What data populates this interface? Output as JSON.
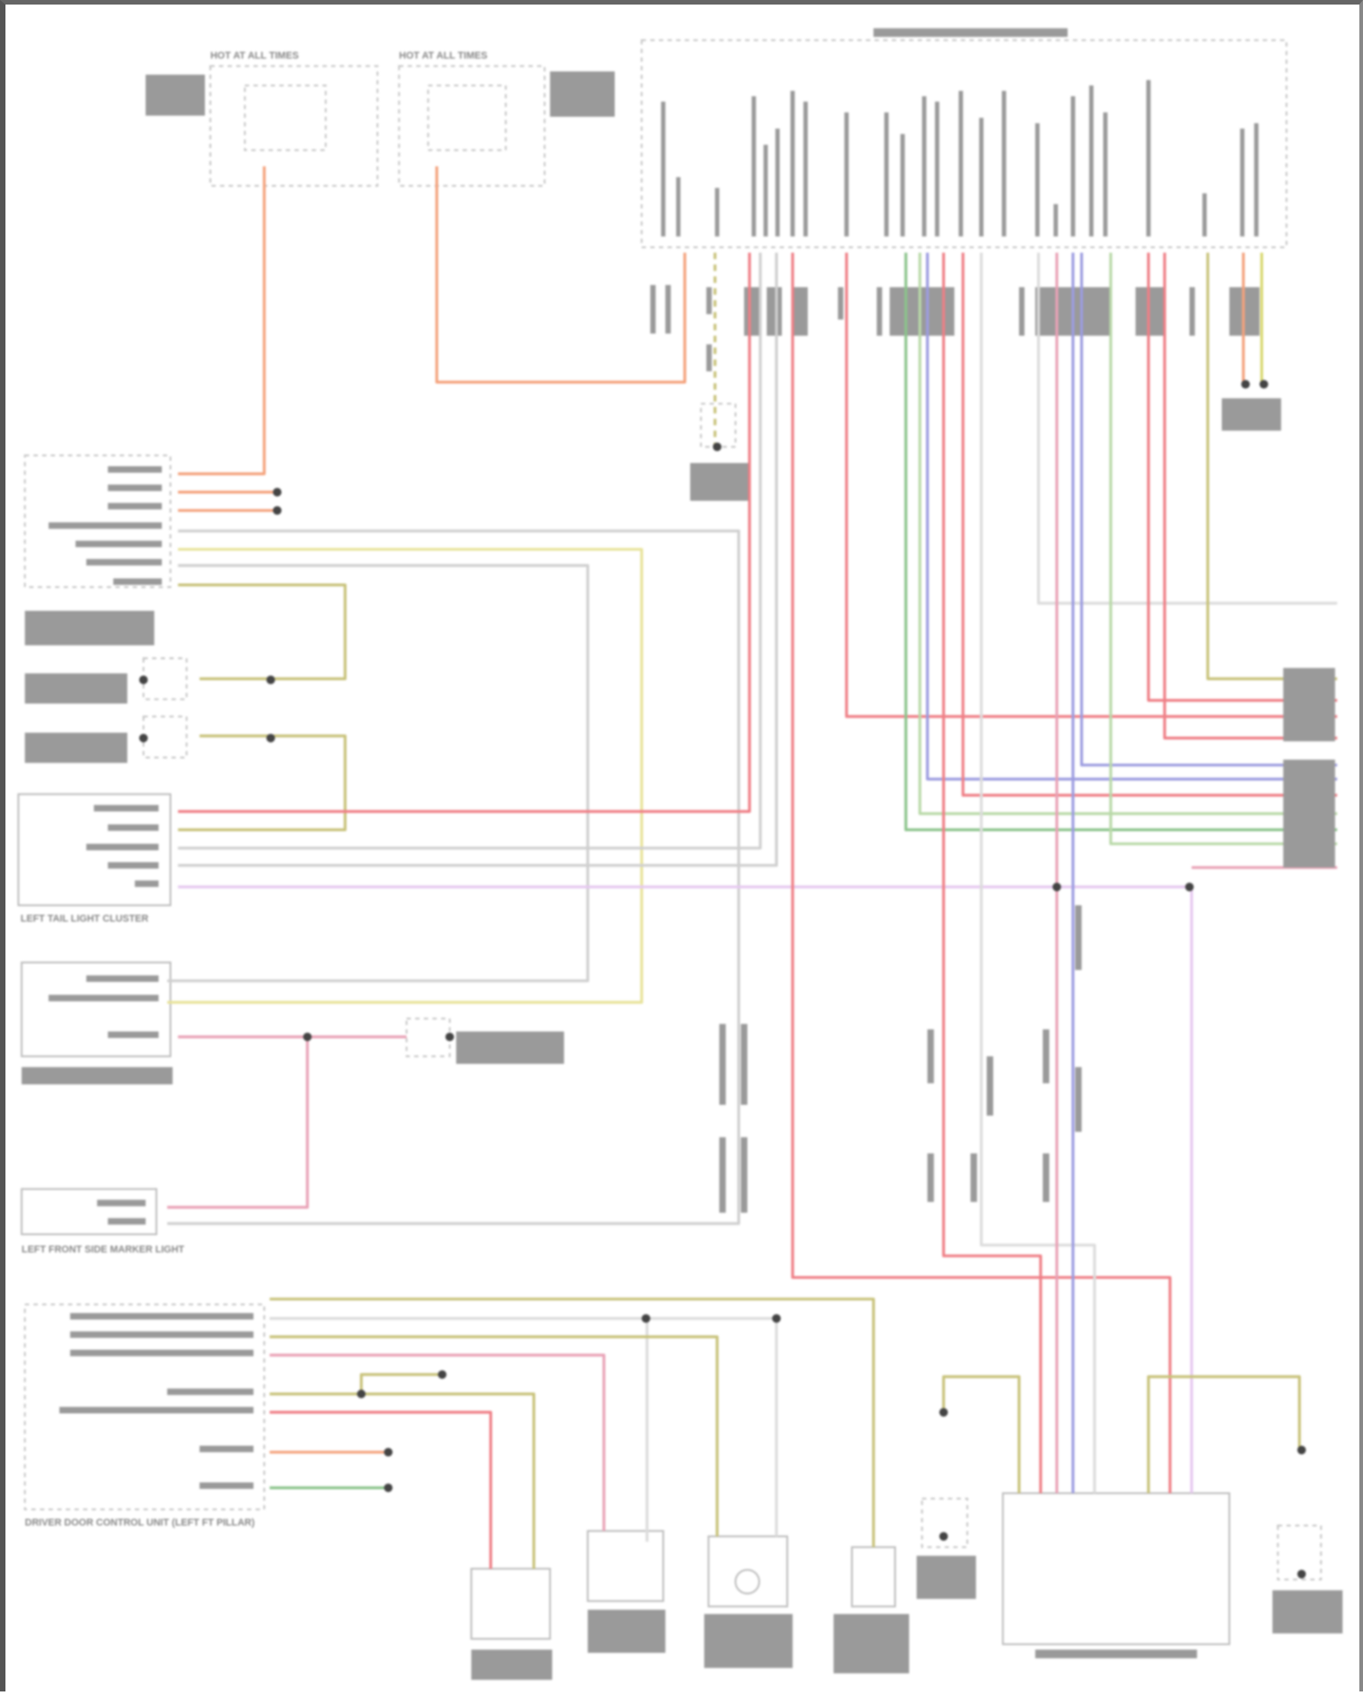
{
  "diagram": {
    "captions": {
      "fuse_left": "HOT AT ALL TIMES",
      "fuse_right": "HOT AT ALL TIMES",
      "tail_light": "LEFT TAIL LIGHT CLUSTER",
      "side_marker": "LEFT FRONT SIDE MARKER LIGHT",
      "door_unit": "DRIVER DOOR CONTROL UNIT (LEFT FT PILLAR)"
    },
    "wire_colors": {
      "orange": "#f4a27c",
      "red": "#ef7f86",
      "pink": "#e9a2b6",
      "grey": "#c9c9c9",
      "light_green": "#b9d9a8",
      "green": "#8cc48c",
      "olive": "#c8c27a",
      "yellow": "#e8e39a",
      "purple": "#9c9ce0",
      "violet": "#d7b7ec"
    }
  }
}
